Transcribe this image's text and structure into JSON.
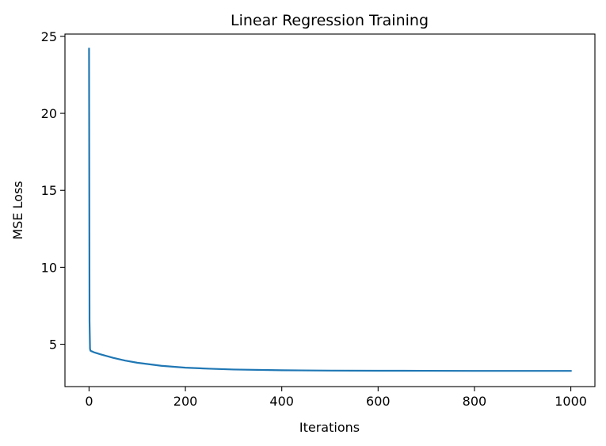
{
  "chart_data": {
    "type": "line",
    "title": "Linear Regression Training",
    "xlabel": "Iterations",
    "ylabel": "MSE Loss",
    "xlim": [
      -50,
      1050
    ],
    "ylim": [
      2.25,
      25.15
    ],
    "xticks": [
      0,
      200,
      400,
      600,
      800,
      1000
    ],
    "yticks": [
      5,
      10,
      15,
      20,
      25
    ],
    "grid": false,
    "series": [
      {
        "color": "#1f77b4",
        "x": [
          0,
          1,
          2,
          3,
          5,
          10,
          20,
          30,
          50,
          75,
          100,
          150,
          200,
          250,
          300,
          400,
          500,
          600,
          700,
          800,
          900,
          1000
        ],
        "y": [
          24.2,
          6.5,
          4.7,
          4.58,
          4.55,
          4.48,
          4.38,
          4.29,
          4.12,
          3.94,
          3.8,
          3.6,
          3.48,
          3.41,
          3.36,
          3.31,
          3.29,
          3.28,
          3.275,
          3.27,
          3.27,
          3.27
        ]
      }
    ]
  }
}
